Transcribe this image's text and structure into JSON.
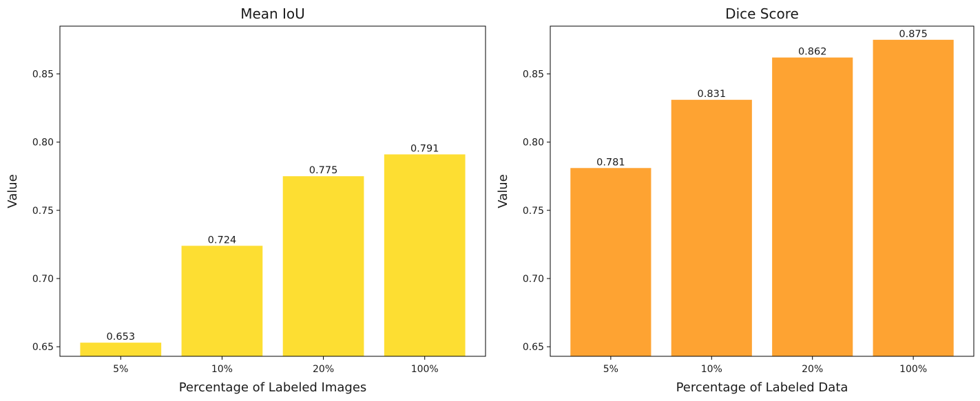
{
  "chart_data": [
    {
      "type": "bar",
      "title": "Mean IoU",
      "xlabel": "Percentage of Labeled Images",
      "ylabel": "Value",
      "categories": [
        "5%",
        "10%",
        "20%",
        "100%"
      ],
      "values": [
        0.653,
        0.724,
        0.775,
        0.791
      ],
      "value_labels": [
        "0.653",
        "0.724",
        "0.775",
        "0.791"
      ],
      "ylim": [
        0.643,
        0.885
      ],
      "yticks": [
        0.65,
        0.7,
        0.75,
        0.8,
        0.85
      ],
      "ytick_labels": [
        "0.65",
        "0.70",
        "0.75",
        "0.80",
        "0.85"
      ],
      "color": "#fdde32",
      "grid": false,
      "legend": "none"
    },
    {
      "type": "bar",
      "title": "Dice Score",
      "xlabel": "Percentage of Labeled Data",
      "ylabel": "Value",
      "categories": [
        "5%",
        "10%",
        "20%",
        "100%"
      ],
      "values": [
        0.781,
        0.831,
        0.862,
        0.875
      ],
      "value_labels": [
        "0.781",
        "0.831",
        "0.862",
        "0.875"
      ],
      "ylim": [
        0.643,
        0.885
      ],
      "yticks": [
        0.65,
        0.7,
        0.75,
        0.8,
        0.85
      ],
      "ytick_labels": [
        "0.65",
        "0.70",
        "0.75",
        "0.80",
        "0.85"
      ],
      "color": "#fea332",
      "grid": false,
      "legend": "none"
    }
  ]
}
